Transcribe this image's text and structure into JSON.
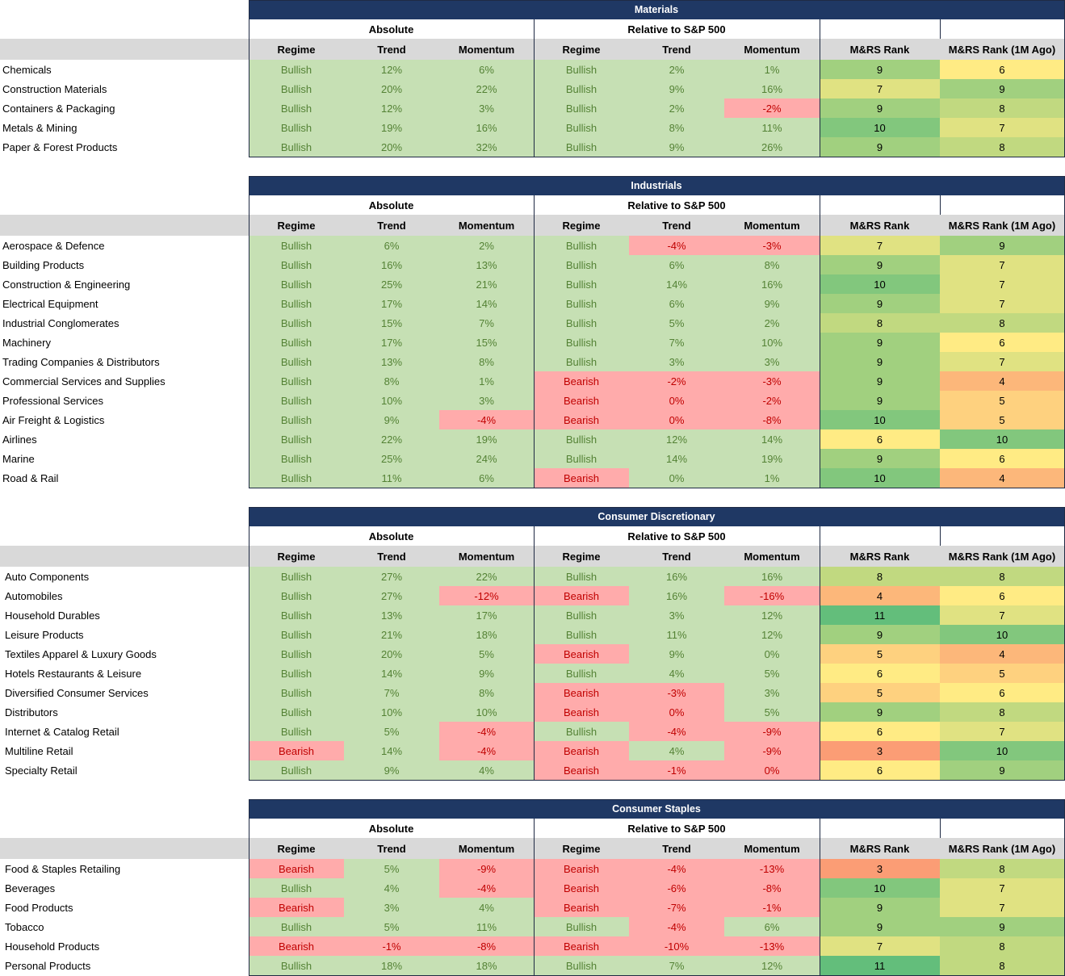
{
  "sections": [
    {
      "title": "Materials",
      "group_headers": [
        "Absolute",
        "Relative to S&P 500"
      ],
      "columns": [
        "Regime",
        "Trend",
        "Momentum",
        "Regime",
        "Trend",
        "Momentum",
        "M&RS Rank",
        "M&RS Rank (1M Ago)"
      ],
      "rows": [
        {
          "name": "Chemicals",
          "cells": [
            "Bullish",
            "12%",
            "6%",
            "Bullish",
            "2%",
            "1%",
            9,
            6
          ]
        },
        {
          "name": "Construction Materials",
          "cells": [
            "Bullish",
            "20%",
            "22%",
            "Bullish",
            "9%",
            "16%",
            7,
            9
          ]
        },
        {
          "name": "Containers & Packaging",
          "cells": [
            "Bullish",
            "12%",
            "3%",
            "Bullish",
            "2%",
            "-2%",
            9,
            8
          ]
        },
        {
          "name": "Metals & Mining",
          "cells": [
            "Bullish",
            "19%",
            "16%",
            "Bullish",
            "8%",
            "11%",
            10,
            7
          ]
        },
        {
          "name": "Paper & Forest Products",
          "cells": [
            "Bullish",
            "20%",
            "32%",
            "Bullish",
            "9%",
            "26%",
            9,
            8
          ]
        }
      ]
    },
    {
      "title": "Industrials",
      "group_headers": [
        "Absolute",
        "Relative to S&P 500"
      ],
      "columns": [
        "Regime",
        "Trend",
        "Momentum",
        "Regime",
        "Trend",
        "Momentum",
        "M&RS Rank",
        "M&RS Rank (1M Ago)"
      ],
      "rows": [
        {
          "name": "Aerospace & Defence",
          "cells": [
            "Bullish",
            "6%",
            "2%",
            "Bullish",
            "-4%",
            "-3%",
            7,
            9
          ]
        },
        {
          "name": "Building Products",
          "cells": [
            "Bullish",
            "16%",
            "13%",
            "Bullish",
            "6%",
            "8%",
            9,
            7
          ]
        },
        {
          "name": "Construction & Engineering",
          "cells": [
            "Bullish",
            "25%",
            "21%",
            "Bullish",
            "14%",
            "16%",
            10,
            7
          ]
        },
        {
          "name": "Electrical Equipment",
          "cells": [
            "Bullish",
            "17%",
            "14%",
            "Bullish",
            "6%",
            "9%",
            9,
            7
          ]
        },
        {
          "name": "Industrial Conglomerates",
          "cells": [
            "Bullish",
            "15%",
            "7%",
            "Bullish",
            "5%",
            "2%",
            8,
            8
          ]
        },
        {
          "name": "Machinery",
          "cells": [
            "Bullish",
            "17%",
            "15%",
            "Bullish",
            "7%",
            "10%",
            9,
            6
          ]
        },
        {
          "name": "Trading Companies & Distributors",
          "cells": [
            "Bullish",
            "13%",
            "8%",
            "Bullish",
            "3%",
            "3%",
            9,
            7
          ]
        },
        {
          "name": "Commercial Services and Supplies",
          "cells": [
            "Bullish",
            "8%",
            "1%",
            "Bearish",
            "-2%",
            "-3%",
            9,
            4
          ]
        },
        {
          "name": "Professional Services",
          "cells": [
            "Bullish",
            "10%",
            "3%",
            "Bearish",
            {
              "text": "0%",
              "tone": "negative"
            },
            "-2%",
            9,
            5
          ]
        },
        {
          "name": "Air Freight & Logistics",
          "cells": [
            "Bullish",
            "9%",
            "-4%",
            "Bearish",
            {
              "text": "0%",
              "tone": "negative"
            },
            "-8%",
            10,
            5
          ]
        },
        {
          "name": "Airlines",
          "cells": [
            "Bullish",
            "22%",
            "19%",
            "Bullish",
            "12%",
            "14%",
            6,
            10
          ]
        },
        {
          "name": "Marine",
          "cells": [
            "Bullish",
            "25%",
            "24%",
            "Bullish",
            "14%",
            "19%",
            9,
            6
          ]
        },
        {
          "name": "Road & Rail",
          "cells": [
            "Bullish",
            "11%",
            "6%",
            "Bearish",
            "0%",
            "1%",
            10,
            4
          ]
        }
      ]
    },
    {
      "title": "Consumer Discretionary",
      "group_headers": [
        "Absolute",
        "Relative to S&P 500"
      ],
      "columns": [
        "Regime",
        "Trend",
        "Momentum",
        "Regime",
        "Trend",
        "Momentum",
        "M&RS Rank",
        "M&RS Rank (1M Ago)"
      ],
      "rows": [
        {
          "name": "Auto Components",
          "cells": [
            "Bullish",
            "27%",
            "22%",
            "Bullish",
            "16%",
            "16%",
            8,
            8
          ]
        },
        {
          "name": "Automobiles",
          "cells": [
            "Bullish",
            "27%",
            "-12%",
            "Bearish",
            "16%",
            "-16%",
            4,
            6
          ]
        },
        {
          "name": "Household Durables",
          "cells": [
            "Bullish",
            "13%",
            "17%",
            "Bullish",
            "3%",
            "12%",
            11,
            7
          ]
        },
        {
          "name": "Leisure Products",
          "cells": [
            "Bullish",
            "21%",
            "18%",
            "Bullish",
            "11%",
            "12%",
            9,
            10
          ]
        },
        {
          "name": "Textiles Apparel & Luxury Goods",
          "cells": [
            "Bullish",
            "20%",
            "5%",
            "Bearish",
            "9%",
            "0%",
            5,
            4
          ]
        },
        {
          "name": "Hotels Restaurants & Leisure",
          "cells": [
            "Bullish",
            "14%",
            "9%",
            "Bullish",
            "4%",
            "5%",
            6,
            5
          ]
        },
        {
          "name": "Diversified Consumer Services",
          "cells": [
            "Bullish",
            "7%",
            "8%",
            "Bearish",
            "-3%",
            "3%",
            5,
            6
          ]
        },
        {
          "name": "Distributors",
          "cells": [
            "Bullish",
            "10%",
            "10%",
            "Bearish",
            {
              "text": "0%",
              "tone": "negative"
            },
            "5%",
            9,
            8
          ]
        },
        {
          "name": "Internet & Catalog Retail",
          "cells": [
            "Bullish",
            "5%",
            "-4%",
            "Bullish",
            "-4%",
            "-9%",
            6,
            7
          ]
        },
        {
          "name": "Multiline Retail",
          "cells": [
            "Bearish",
            "14%",
            "-4%",
            "Bearish",
            "4%",
            "-9%",
            3,
            10
          ]
        },
        {
          "name": "Specialty Retail",
          "cells": [
            "Bullish",
            "9%",
            "4%",
            "Bearish",
            "-1%",
            {
              "text": "0%",
              "tone": "negative"
            },
            6,
            9
          ]
        }
      ]
    },
    {
      "title": "Consumer Staples",
      "group_headers": [
        "Absolute",
        "Relative to S&P 500"
      ],
      "columns": [
        "Regime",
        "Trend",
        "Momentum",
        "Regime",
        "Trend",
        "Momentum",
        "M&RS Rank",
        "M&RS Rank (1M Ago)"
      ],
      "rows": [
        {
          "name": "Food & Staples Retailing",
          "cells": [
            "Bearish",
            "5%",
            "-9%",
            "Bearish",
            "-4%",
            "-13%",
            3,
            8
          ]
        },
        {
          "name": "Beverages",
          "cells": [
            "Bullish",
            "4%",
            "-4%",
            "Bearish",
            "-6%",
            "-8%",
            10,
            7
          ]
        },
        {
          "name": "Food Products",
          "cells": [
            "Bearish",
            "3%",
            "4%",
            "Bearish",
            "-7%",
            "-1%",
            9,
            7
          ]
        },
        {
          "name": "Tobacco",
          "cells": [
            "Bullish",
            "5%",
            "11%",
            "Bullish",
            "-4%",
            "6%",
            9,
            9
          ]
        },
        {
          "name": "Household Products",
          "cells": [
            "Bearish",
            "-1%",
            "-8%",
            "Bearish",
            "-10%",
            "-13%",
            7,
            8
          ]
        },
        {
          "name": "Personal Products",
          "cells": [
            "Bullish",
            "18%",
            "18%",
            "Bullish",
            "7%",
            "12%",
            11,
            8
          ]
        }
      ]
    }
  ]
}
